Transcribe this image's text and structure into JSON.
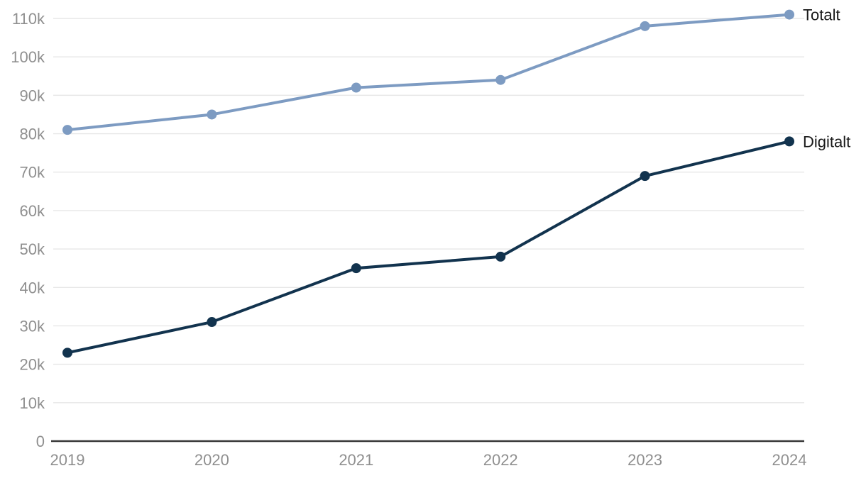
{
  "chart_data": {
    "type": "line",
    "title": "",
    "xlabel": "",
    "ylabel": "",
    "categories": [
      "2019",
      "2020",
      "2021",
      "2022",
      "2023",
      "2024"
    ],
    "series": [
      {
        "name": "Totalt",
        "values": [
          81000,
          85000,
          92000,
          94000,
          108000,
          111000
        ],
        "color": "#7d9bc2"
      },
      {
        "name": "Digitalt",
        "values": [
          23000,
          31000,
          45000,
          48000,
          69000,
          78000
        ],
        "color": "#12334e"
      }
    ],
    "y_ticks": [
      {
        "value": 0,
        "label": "0"
      },
      {
        "value": 10000,
        "label": "10k"
      },
      {
        "value": 20000,
        "label": "20k"
      },
      {
        "value": 30000,
        "label": "30k"
      },
      {
        "value": 40000,
        "label": "40k"
      },
      {
        "value": 50000,
        "label": "50k"
      },
      {
        "value": 60000,
        "label": "60k"
      },
      {
        "value": 70000,
        "label": "70k"
      },
      {
        "value": 80000,
        "label": "80k"
      },
      {
        "value": 90000,
        "label": "90k"
      },
      {
        "value": 100000,
        "label": "100k"
      },
      {
        "value": 110000,
        "label": "110k"
      }
    ],
    "ylim": [
      0,
      110000
    ],
    "grid": "horizontal",
    "legend_position": "end-of-line-labels",
    "marker": "circle"
  },
  "colors": {
    "background": "#ffffff",
    "gridline": "#e7e7e7",
    "axis_baseline": "#383838",
    "tick_label": "#8f8f8f",
    "series_label": "#1a1a1a"
  }
}
